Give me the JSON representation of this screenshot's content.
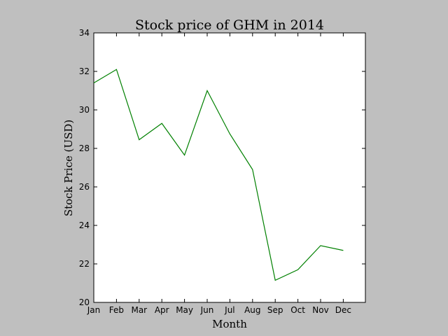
{
  "chart_data": {
    "type": "line",
    "title": "Stock price of GHM in 2014",
    "xlabel": "Month",
    "ylabel": "Stock Price (USD)",
    "categories": [
      "Jan",
      "Feb",
      "Mar",
      "Apr",
      "May",
      "Jun",
      "Jul",
      "Aug",
      "Sep",
      "Oct",
      "Nov",
      "Dec"
    ],
    "series": [
      {
        "values": [
          31.4,
          32.1,
          28.45,
          29.3,
          27.65,
          31.0,
          28.75,
          26.9,
          21.15,
          21.7,
          22.95,
          22.7
        ],
        "color": "#008000"
      }
    ],
    "ylim": [
      20,
      34
    ],
    "yticks": [
      20,
      22,
      24,
      26,
      28,
      30,
      32,
      34
    ],
    "grid": false,
    "legend": "none"
  }
}
